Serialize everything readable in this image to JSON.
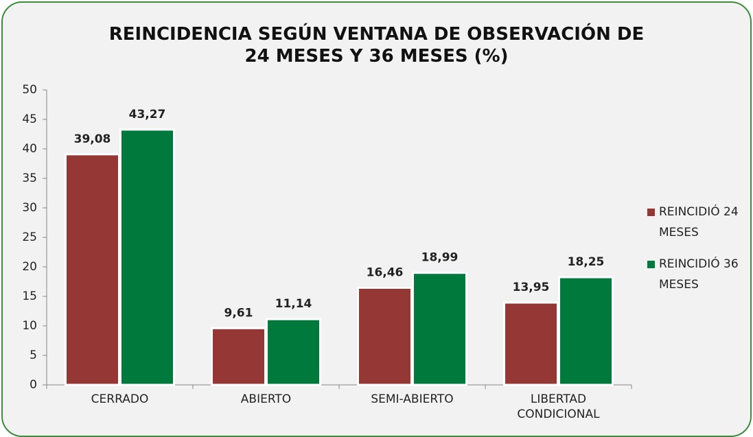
{
  "chart_data": {
    "type": "bar",
    "title": "REINCIDENCIA SEGÚN VENTANA DE OBSERVACIÓN DE\n24 MESES Y 36 MESES (%)",
    "categories": [
      "CERRADO",
      "ABIERTO",
      "SEMI-ABIERTO",
      "LIBERTAD CONDICIONAL"
    ],
    "series": [
      {
        "name": "REINCIDIÓ 24 MESES",
        "color": "#953735",
        "values": [
          39.08,
          9.61,
          16.46,
          13.95
        ],
        "value_labels": [
          "39,08",
          "9,61",
          "16,46",
          "13,95"
        ]
      },
      {
        "name": "REINCIDIÓ 36 MESES",
        "color": "#00793d",
        "values": [
          43.27,
          11.14,
          18.99,
          18.25
        ],
        "value_labels": [
          "43,27",
          "11,14",
          "18,99",
          "18,25"
        ]
      }
    ],
    "ylim": [
      0,
      50
    ],
    "yticks": [
      0,
      5,
      10,
      15,
      20,
      25,
      30,
      35,
      40,
      45,
      50
    ],
    "grid": false,
    "legend": "right"
  }
}
